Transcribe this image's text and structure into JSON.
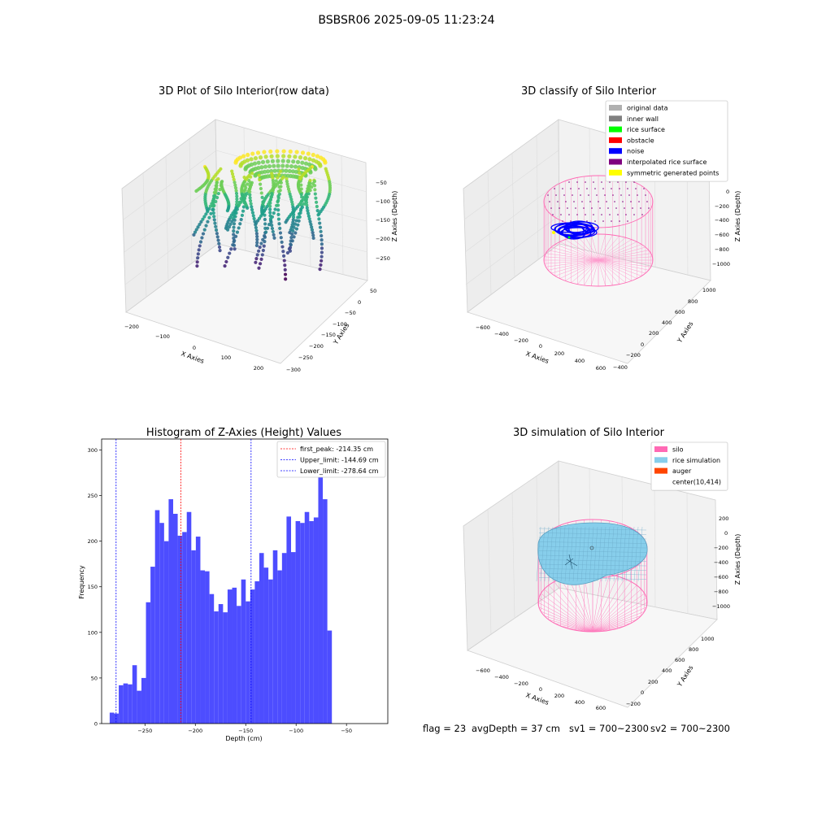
{
  "figure": {
    "suptitle": "BSBSR06 2025-09-05 11:23:24"
  },
  "panels": {
    "raw": {
      "title": "3D Plot of Silo Interior(row data)",
      "xlabel": "X Axies",
      "ylabel": "Y Axies",
      "zlabel": "Z Axies (Depth)",
      "xticks": [
        "−200",
        "−100",
        "0",
        "100",
        "200"
      ],
      "yticks": [
        "50",
        "0",
        "−50",
        "−100",
        "−150",
        "−200",
        "−250",
        "−300"
      ],
      "zticks": [
        "−50",
        "−100",
        "−150",
        "−200",
        "−250"
      ]
    },
    "classify": {
      "title": "3D classify of Silo Interior",
      "xlabel": "X Axies",
      "ylabel": "Y Axies",
      "zlabel": "Z Axies (Depth)",
      "xticks": [
        "−600",
        "−400",
        "−200",
        "0",
        "200",
        "400",
        "600"
      ],
      "yticks": [
        "1000",
        "800",
        "600",
        "400",
        "200",
        "0",
        "−200",
        "−400"
      ],
      "zticks": [
        "200",
        "0",
        "−200",
        "−400",
        "−600",
        "−800",
        "−1000"
      ],
      "legend": [
        {
          "label": "original data",
          "color": "#b0b0b0"
        },
        {
          "label": "inner wall",
          "color": "#808080"
        },
        {
          "label": "rice surface",
          "color": "#00ff00"
        },
        {
          "label": "obstacle",
          "color": "#ff0000"
        },
        {
          "label": "noise",
          "color": "#0000ff"
        },
        {
          "label": "interpolated rice surface",
          "color": "#800080"
        },
        {
          "label": "symmetric generated points",
          "color": "#ffff00"
        }
      ]
    },
    "simulation": {
      "title": "3D simulation of Silo Interior",
      "xlabel": "X Axies",
      "ylabel": "Y Axies",
      "zlabel": "Z Axies (Depth)",
      "xticks": [
        "−600",
        "−400",
        "−200",
        "0",
        "200",
        "400",
        "600"
      ],
      "yticks": [
        "1000",
        "800",
        "600",
        "400",
        "200",
        "0",
        "−200"
      ],
      "zticks": [
        "200",
        "0",
        "−200",
        "−400",
        "−600",
        "−800",
        "−1000"
      ],
      "legend": [
        {
          "label": "silo",
          "color": "#ff69b4"
        },
        {
          "label": "rice simulation",
          "color": "#87ceeb"
        },
        {
          "label": "auger",
          "color": "#ff4500"
        },
        {
          "label": "center(10,414)",
          "color": "#ffffff"
        }
      ]
    }
  },
  "status": {
    "flag": "flag = 23",
    "avg_depth": "avgDepth = 37 cm",
    "sv1": "sv1 = 700~2300",
    "sv2": "sv2 = 700~2300"
  },
  "chart_data": [
    {
      "type": "bar",
      "title": "Histogram of Z-Axies (Height) Values",
      "xlabel": "Depth (cm)",
      "ylabel": "Frequency",
      "bar_color": "#4d4dff",
      "bin_start": -285,
      "bin_width": 4.5,
      "values": [
        12,
        11,
        42,
        44,
        43,
        64,
        36,
        50,
        133,
        172,
        234,
        220,
        200,
        246,
        230,
        206,
        210,
        232,
        190,
        205,
        168,
        167,
        142,
        123,
        131,
        122,
        147,
        149,
        129,
        158,
        134,
        147,
        156,
        187,
        171,
        158,
        190,
        168,
        187,
        227,
        188,
        222,
        220,
        232,
        222,
        226,
        294,
        246,
        102
      ],
      "xlim": [
        -293,
        -9
      ],
      "ylim": [
        0,
        312
      ],
      "xticks": [
        -250,
        -200,
        -150,
        -100,
        -50
      ],
      "xtick_labels": [
        "−250",
        "−200",
        "−150",
        "−100",
        "−50"
      ],
      "yticks": [
        0,
        50,
        100,
        150,
        200,
        250,
        300
      ],
      "ytick_labels": [
        "0",
        "50",
        "100",
        "150",
        "200",
        "250",
        "300"
      ],
      "vlines": [
        {
          "label": "first_peak: -214.35 cm",
          "x": -214.35,
          "color": "#ff0000"
        },
        {
          "label": "Upper_limit: -144.69 cm",
          "x": -144.69,
          "color": "#0000ff"
        },
        {
          "label": "Lower_limit: -278.64 cm",
          "x": -278.64,
          "color": "#0000ff"
        }
      ],
      "legend_position": "top-right"
    }
  ]
}
